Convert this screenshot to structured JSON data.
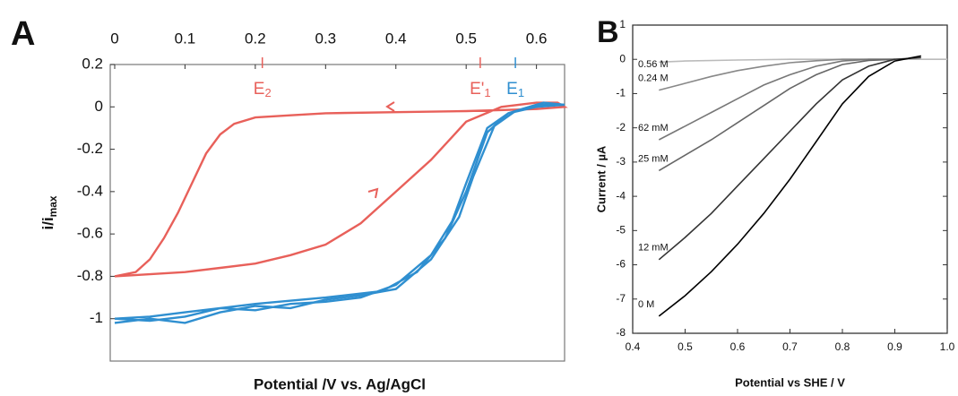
{
  "chart_data": [
    {
      "type": "line",
      "panel_label": "A",
      "xlabel": "Potential /V vs. Ag/AgCl",
      "ylabel": {
        "text": "i/i",
        "sub": "max"
      },
      "xaxis_position": "top",
      "xlim": [
        0,
        0.64
      ],
      "xticks": [
        0,
        0.1,
        0.2,
        0.3,
        0.4,
        0.5,
        0.6
      ],
      "ylim": [
        -1.2,
        0.2
      ],
      "yticks": [
        0.2,
        0,
        -0.2,
        -0.4,
        -0.6,
        -0.8,
        -1
      ],
      "annotations": [
        {
          "x": 0.21,
          "text": "E",
          "sub": "2",
          "color": "#e8605a"
        },
        {
          "x": 0.52,
          "text": "E'",
          "sub": "1",
          "color": "#e8605a"
        },
        {
          "x": 0.57,
          "text": "E",
          "sub": "1",
          "color": "#2f8fd0"
        }
      ],
      "series": [
        {
          "color": "#e8605a",
          "x": [
            0,
            0.05,
            0.1,
            0.15,
            0.2,
            0.25,
            0.3,
            0.35,
            0.4,
            0.45,
            0.5,
            0.55,
            0.6,
            0.63,
            0.64,
            0.6,
            0.5,
            0.4,
            0.3,
            0.25,
            0.2,
            0.17,
            0.15,
            0.13,
            0.11,
            0.09,
            0.07,
            0.05,
            0.03,
            0
          ],
          "values": [
            -0.8,
            -0.79,
            -0.78,
            -0.76,
            -0.74,
            -0.7,
            -0.65,
            -0.55,
            -0.4,
            -0.25,
            -0.07,
            0,
            0.02,
            0.02,
            0,
            -0.01,
            -0.02,
            -0.025,
            -0.03,
            -0.04,
            -0.05,
            -0.08,
            -0.13,
            -0.22,
            -0.36,
            -0.5,
            -0.62,
            -0.72,
            -0.78,
            -0.8
          ]
        },
        {
          "color": "#2f8fd0",
          "x": [
            0,
            0.05,
            0.1,
            0.15,
            0.2,
            0.25,
            0.3,
            0.35,
            0.4,
            0.45,
            0.48,
            0.5,
            0.53,
            0.56,
            0.6,
            0.64,
            0.6,
            0.56,
            0.53,
            0.5,
            0.47,
            0.43,
            0.38,
            0.3,
            0.2,
            0.1,
            0.05,
            0
          ],
          "values": [
            -1,
            -1.01,
            -0.99,
            -0.95,
            -0.96,
            -0.93,
            -0.92,
            -0.9,
            -0.84,
            -0.7,
            -0.54,
            -0.36,
            -0.1,
            -0.03,
            0.01,
            0.01,
            0,
            -0.03,
            -0.12,
            -0.4,
            -0.62,
            -0.78,
            -0.87,
            -0.9,
            -0.93,
            -0.97,
            -0.99,
            -1
          ]
        },
        {
          "color": "#2f8fd0",
          "x": [
            0,
            0.05,
            0.1,
            0.15,
            0.2,
            0.25,
            0.3,
            0.35,
            0.4,
            0.45,
            0.49,
            0.51,
            0.54,
            0.57,
            0.61,
            0.64
          ],
          "values": [
            -1.02,
            -1,
            -1.02,
            -0.97,
            -0.94,
            -0.95,
            -0.91,
            -0.89,
            -0.86,
            -0.72,
            -0.52,
            -0.33,
            -0.09,
            -0.02,
            0.02,
            0.01
          ]
        }
      ]
    },
    {
      "type": "line",
      "panel_label": "B",
      "xlabel": "Potential vs SHE / V",
      "ylabel": "Current / µA",
      "xaxis_position": "bottom",
      "xlim": [
        0.4,
        1
      ],
      "xticks": [
        0.4,
        0.5,
        0.6,
        0.7,
        0.8,
        0.9,
        {
          "value": 1,
          "label": "1.0"
        }
      ],
      "ylim": [
        -8,
        1
      ],
      "yticks": [
        1,
        0,
        -1,
        -2,
        -3,
        -4,
        -5,
        -6,
        -7,
        -8
      ],
      "series": [
        {
          "name": "0.56 M",
          "color": "#bbbbbb",
          "x": [
            0.45,
            0.5,
            0.6,
            0.7,
            0.8,
            0.9,
            1
          ],
          "values": [
            -0.08,
            -0.05,
            -0.02,
            0,
            0,
            0,
            0
          ]
        },
        {
          "name": "0.24 M",
          "color": "#888888",
          "x": [
            0.45,
            0.5,
            0.55,
            0.6,
            0.65,
            0.7,
            0.75,
            0.8,
            0.9
          ],
          "values": [
            -0.9,
            -0.7,
            -0.5,
            -0.33,
            -0.2,
            -0.1,
            -0.04,
            0,
            0
          ]
        },
        {
          "name": "62 mM",
          "color": "#777777",
          "x": [
            0.45,
            0.5,
            0.55,
            0.6,
            0.65,
            0.7,
            0.75,
            0.8,
            0.85,
            0.9
          ],
          "values": [
            -2.35,
            -1.95,
            -1.55,
            -1.15,
            -0.75,
            -0.45,
            -0.2,
            -0.05,
            0,
            0
          ]
        },
        {
          "name": "25 mM",
          "color": "#666666",
          "x": [
            0.45,
            0.5,
            0.55,
            0.6,
            0.65,
            0.7,
            0.75,
            0.8,
            0.85,
            0.9
          ],
          "values": [
            -3.25,
            -2.8,
            -2.35,
            -1.85,
            -1.35,
            -0.85,
            -0.45,
            -0.15,
            -0.03,
            0
          ]
        },
        {
          "name": "12 mM",
          "color": "#333333",
          "x": [
            0.45,
            0.5,
            0.55,
            0.6,
            0.65,
            0.7,
            0.75,
            0.8,
            0.85,
            0.9,
            0.95
          ],
          "values": [
            -5.85,
            -5.2,
            -4.5,
            -3.7,
            -2.9,
            -2.1,
            -1.3,
            -0.6,
            -0.2,
            0,
            0.05
          ]
        },
        {
          "name": "0 M",
          "color": "#000000",
          "x": [
            0.45,
            0.5,
            0.55,
            0.6,
            0.65,
            0.7,
            0.75,
            0.8,
            0.85,
            0.9,
            0.95
          ],
          "values": [
            -7.5,
            -6.9,
            -6.2,
            -5.4,
            -4.5,
            -3.5,
            -2.4,
            -1.3,
            -0.5,
            -0.05,
            0.1
          ]
        }
      ]
    }
  ]
}
